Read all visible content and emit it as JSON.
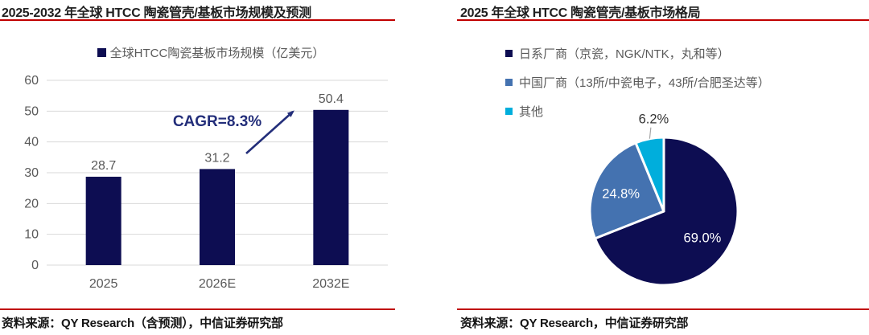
{
  "colors": {
    "navy": "#0d0d52",
    "mid_blue": "#4472b0",
    "cyan": "#00aedc",
    "red_rule": "#c00000",
    "axis_text": "#595959",
    "gridline": "#d9d9d9",
    "annotation_navy": "#232e7a",
    "leader_gray": "#a6a6a6",
    "pie_label_outside": "#333333"
  },
  "left_panel": {
    "title": "2025-2032 年全球 HTCC 陶瓷管壳/基板市场规模及预测",
    "legend": "全球HTCC陶瓷基板市场规模（亿美元）",
    "annotation": "CAGR=8.3%",
    "source": "资料来源：QY Research（含预测），中信证券研究部"
  },
  "right_panel": {
    "title": "2025 年全球 HTCC 陶瓷管壳/基板市场格局",
    "legend": [
      "日系厂商（京瓷，NGK/NTK，丸和等）",
      "中国厂商（13所/中瓷电子，43所/合肥圣达等）",
      "其他"
    ],
    "source": "资料来源：QY Research，中信证券研究部"
  },
  "chart_data": [
    {
      "type": "bar",
      "title": "2025-2032 年全球 HTCC 陶瓷管壳/基板市场规模及预测",
      "series_name": "全球HTCC陶瓷基板市场规模（亿美元）",
      "categories": [
        "2025",
        "2026E",
        "2032E"
      ],
      "values": [
        28.7,
        31.2,
        50.4
      ],
      "ylabel": "",
      "xlabel": "",
      "ylim": [
        0,
        60
      ],
      "ytick_step": 10,
      "grid": true,
      "legend_position": "top",
      "bar_color": "#0d0d52",
      "annotation": "CAGR=8.3%"
    },
    {
      "type": "pie",
      "title": "2025 年全球 HTCC 陶瓷管壳/基板市场格局",
      "labels": [
        "日系厂商（京瓷，NGK/NTK，丸和等）",
        "中国厂商（13所/中瓷电子，43所/合肥圣达等）",
        "其他"
      ],
      "values": [
        69.0,
        24.8,
        6.2
      ],
      "unit": "%",
      "slice_colors": [
        "#0d0d52",
        "#4472b0",
        "#00aedc"
      ],
      "legend_position": "top"
    }
  ]
}
